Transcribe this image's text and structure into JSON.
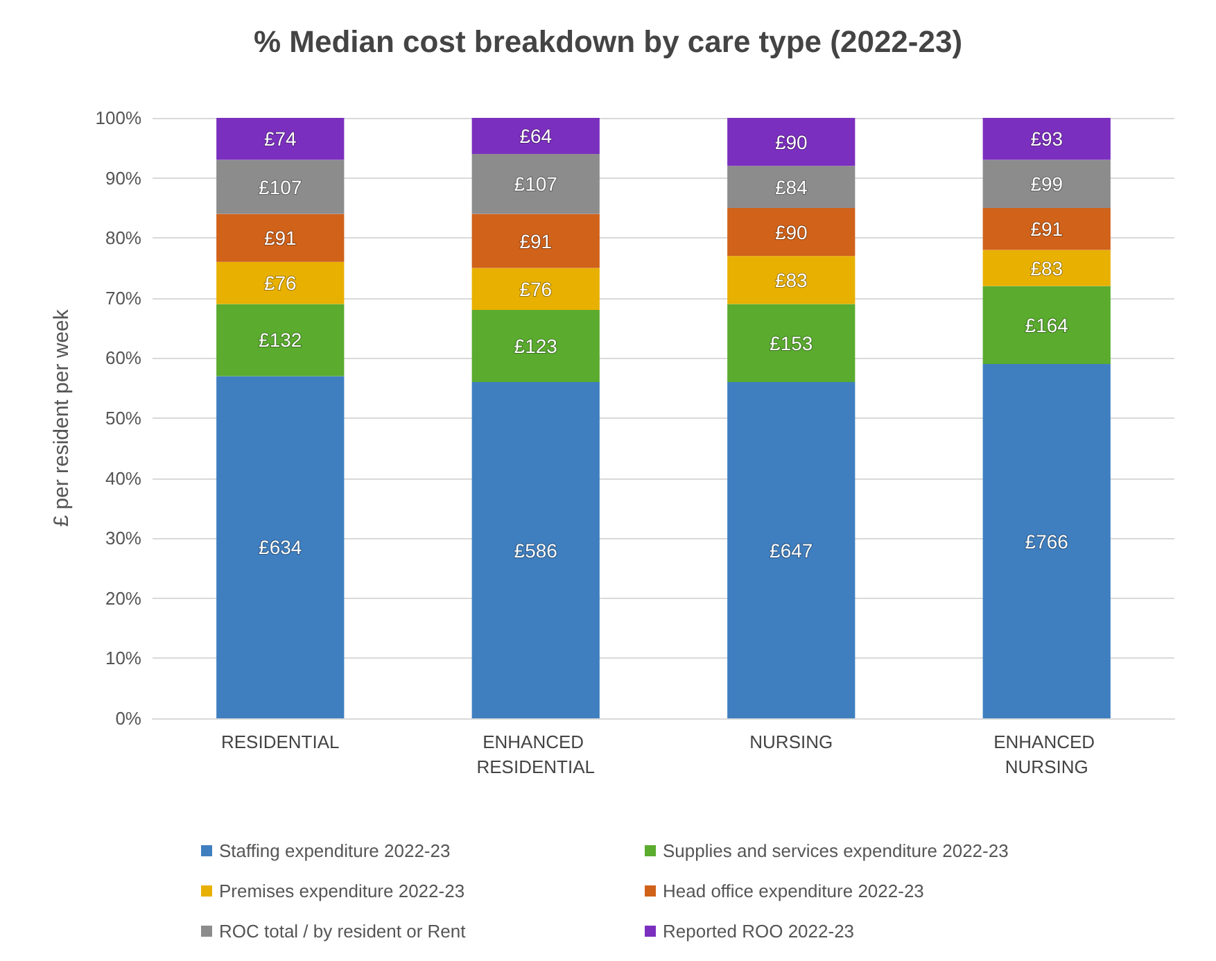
{
  "chart_data": {
    "type": "bar",
    "stacked": true,
    "title": "% Median cost breakdown by care type (2022-23)",
    "ylabel": "£ per resident per week",
    "categories": [
      "RESIDENTIAL",
      "ENHANCED RESIDENTIAL",
      "NURSING",
      "ENHANCED NURSING"
    ],
    "series": [
      {
        "name": "Staffing expenditure 2022-23",
        "color": "#3f7fc0",
        "values": [
          57,
          56,
          56,
          59
        ]
      },
      {
        "name": "Supplies and services expenditure 2022-23",
        "color": "#5aab2e",
        "values": [
          12,
          12,
          13,
          13
        ]
      },
      {
        "name": "Premises expenditure 2022-23",
        "color": "#e8b000",
        "values": [
          7,
          7,
          8,
          6
        ]
      },
      {
        "name": "Head office expenditure 2022-23",
        "color": "#d0621a",
        "values": [
          8,
          9,
          8,
          7
        ]
      },
      {
        "name": "ROC total / by resident or Rent",
        "color": "#8c8c8c",
        "values": [
          9,
          10,
          7,
          8
        ]
      },
      {
        "name": "Reported ROO 2022-23",
        "color": "#7b2fbf",
        "values": [
          7,
          6,
          8,
          7
        ]
      }
    ],
    "annotations": [
      "£634",
      "£132",
      "£76",
      "£91",
      "£107",
      "£74",
      "£586",
      "£123",
      "£76",
      "£91",
      "£107",
      "£64",
      "£647",
      "£153",
      "£83",
      "£90",
      "£84",
      "£90",
      "£766",
      "£164",
      "£83",
      "£91",
      "£99",
      "£93"
    ],
    "ylim": [
      0,
      100
    ],
    "yticks": [
      {
        "value": 0,
        "label": "0%"
      },
      {
        "value": 10,
        "label": "10%"
      },
      {
        "value": 20,
        "label": "20%"
      },
      {
        "value": 30,
        "label": "30%"
      },
      {
        "value": 40,
        "label": "40%"
      },
      {
        "value": 50,
        "label": "50%"
      },
      {
        "value": 60,
        "label": "60%"
      },
      {
        "value": 70,
        "label": "70%"
      },
      {
        "value": 80,
        "label": "80%"
      },
      {
        "value": 90,
        "label": "90%"
      },
      {
        "value": 100,
        "label": "100%"
      }
    ],
    "grid": "y",
    "legend": "bottom"
  }
}
